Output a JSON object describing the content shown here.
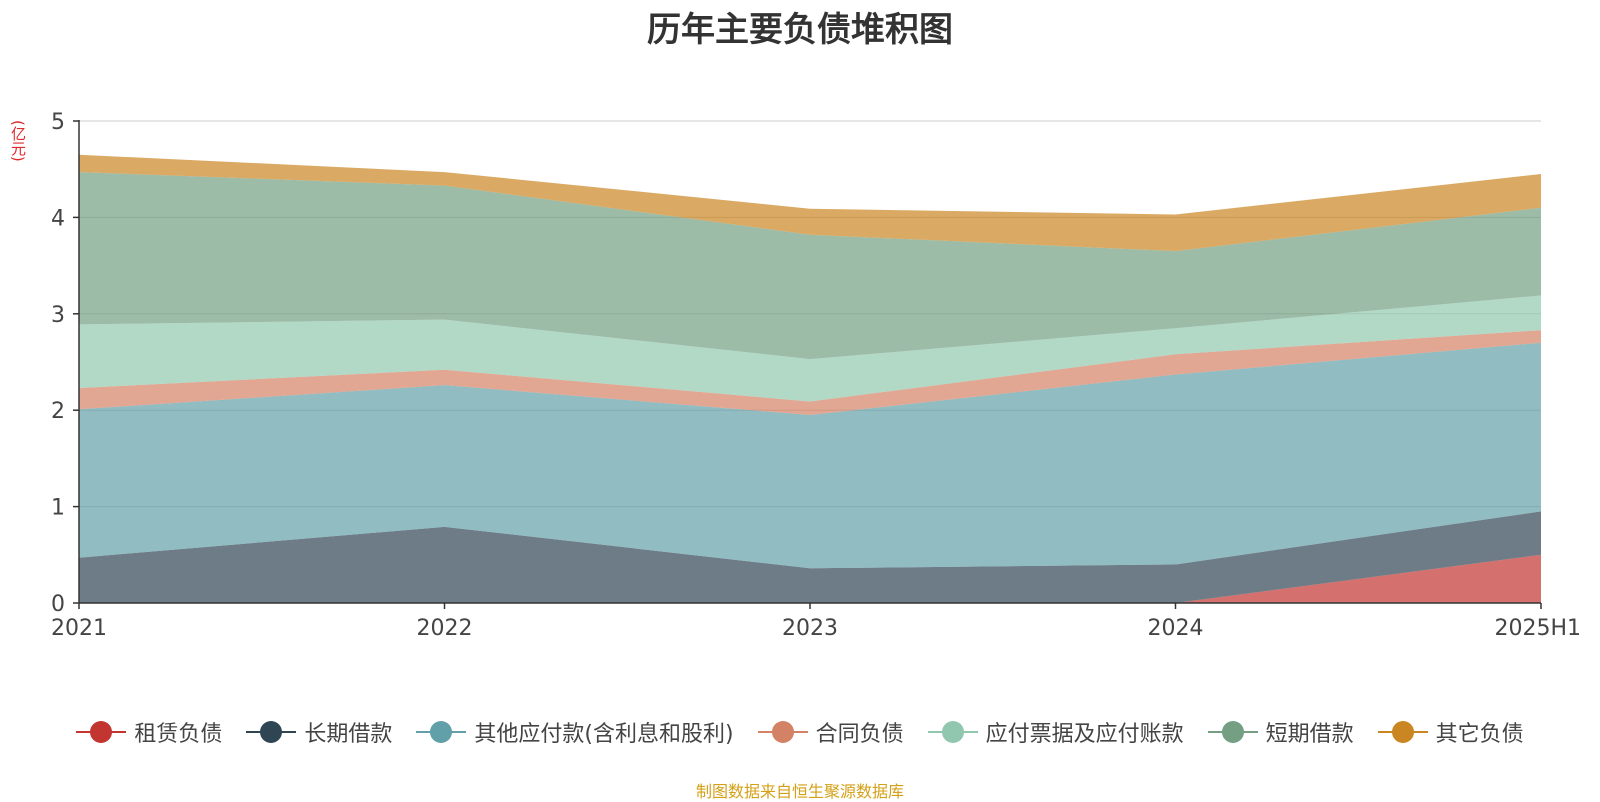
{
  "chart_data": {
    "type": "area",
    "stacked": true,
    "title": "历年主要负债堆积图",
    "ylabel": "(亿元)",
    "xlabel": "",
    "categories": [
      "2021",
      "2022",
      "2023",
      "2024",
      "2025H1"
    ],
    "ylim": [
      0,
      5
    ],
    "yticks": [
      "0",
      "1",
      "2",
      "3",
      "4",
      "5"
    ],
    "grid": true,
    "legend_position": "bottom",
    "series": [
      {
        "name": "租赁负债",
        "color": "#c23531",
        "values": [
          0,
          0,
          0,
          0,
          0.5
        ]
      },
      {
        "name": "长期借款",
        "color": "#2f4554",
        "values": [
          0.47,
          0.79,
          0.36,
          0.4,
          0.45
        ]
      },
      {
        "name": "其他应付款(含利息和股利)",
        "color": "#61a0a8",
        "values": [
          1.54,
          1.47,
          1.59,
          1.97,
          1.75
        ]
      },
      {
        "name": "合同负债",
        "color": "#d48265",
        "values": [
          0.22,
          0.16,
          0.14,
          0.21,
          0.13
        ]
      },
      {
        "name": "应付票据及应付账款",
        "color": "#91c7ae",
        "values": [
          0.66,
          0.52,
          0.44,
          0.27,
          0.36
        ]
      },
      {
        "name": "短期借款",
        "color": "#749f83",
        "values": [
          1.58,
          1.39,
          1.29,
          0.8,
          0.91
        ]
      },
      {
        "name": "其它负债",
        "color": "#ca8622",
        "values": [
          0.18,
          0.14,
          0.27,
          0.38,
          0.35
        ]
      }
    ]
  },
  "footer": {
    "source": "制图数据来自恒生聚源数据库"
  }
}
